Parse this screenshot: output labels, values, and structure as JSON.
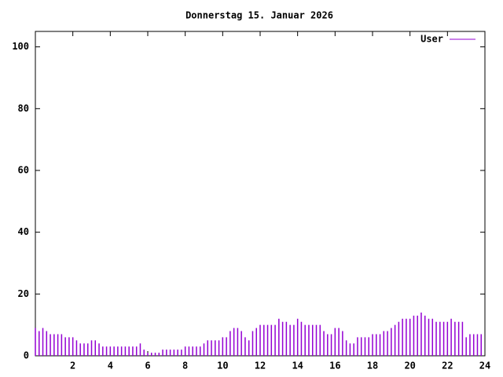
{
  "chart_data": {
    "type": "impulses",
    "title": "Donnerstag 15. Januar 2026",
    "x": [
      0,
      0.2,
      0.4,
      0.6,
      0.8,
      1,
      1.2,
      1.4,
      1.6,
      1.8,
      2,
      2.2,
      2.4,
      2.6,
      2.8,
      3,
      3.2,
      3.4,
      3.6,
      3.8,
      4,
      4.2,
      4.4,
      4.6,
      4.8,
      5,
      5.2,
      5.4,
      5.6,
      5.8,
      6,
      6.2,
      6.4,
      6.6,
      6.8,
      7,
      7.2,
      7.4,
      7.6,
      7.8,
      8,
      8.2,
      8.4,
      8.6,
      8.8,
      9,
      9.2,
      9.4,
      9.6,
      9.8,
      10,
      10.2,
      10.4,
      10.6,
      10.8,
      11,
      11.2,
      11.4,
      11.6,
      11.8,
      12,
      12.2,
      12.4,
      12.6,
      12.8,
      13,
      13.2,
      13.4,
      13.6,
      13.8,
      14,
      14.2,
      14.4,
      14.6,
      14.8,
      15,
      15.2,
      15.4,
      15.6,
      15.8,
      16,
      16.2,
      16.4,
      16.6,
      16.8,
      17,
      17.2,
      17.4,
      17.6,
      17.8,
      18,
      18.2,
      18.4,
      18.6,
      18.8,
      19,
      19.2,
      19.4,
      19.6,
      19.8,
      20,
      20.2,
      20.4,
      20.6,
      20.8,
      21,
      21.2,
      21.4,
      21.6,
      21.8,
      22,
      22.2,
      22.4,
      22.6,
      22.8,
      23,
      23.2,
      23.4,
      23.6,
      23.8
    ],
    "series": [
      {
        "name": "User",
        "color": "#9400d3",
        "values": [
          9,
          8,
          9,
          8,
          7,
          7,
          7,
          7,
          6,
          6,
          6,
          5,
          4,
          4,
          4,
          5,
          5,
          4,
          3,
          3,
          3,
          3,
          3,
          3,
          3,
          3,
          3,
          3,
          4,
          2,
          1,
          1,
          1,
          1,
          2,
          2,
          2,
          2,
          2,
          2,
          3,
          3,
          3,
          3,
          3,
          4,
          5,
          5,
          5,
          5,
          6,
          6,
          8,
          9,
          9,
          8,
          6,
          5,
          8,
          9,
          10,
          10,
          10,
          10,
          10,
          12,
          11,
          11,
          10,
          10,
          12,
          11,
          10,
          10,
          10,
          10,
          10,
          8,
          7,
          7,
          9,
          9,
          8,
          5,
          4,
          4,
          6,
          6,
          6,
          6,
          7,
          7,
          7,
          8,
          8,
          9,
          10,
          11,
          12,
          12,
          12,
          13,
          13,
          14,
          13,
          12,
          12,
          11,
          11,
          11,
          11,
          12,
          11,
          11,
          11,
          6,
          7,
          7,
          7,
          7
        ]
      }
    ],
    "xlim": [
      0,
      24
    ],
    "xticks": [
      2,
      4,
      6,
      8,
      10,
      12,
      14,
      16,
      18,
      20,
      22,
      24
    ],
    "ylim": [
      0,
      105
    ],
    "yticks": [
      0,
      20,
      40,
      60,
      80,
      100
    ],
    "legend": "upper right"
  }
}
